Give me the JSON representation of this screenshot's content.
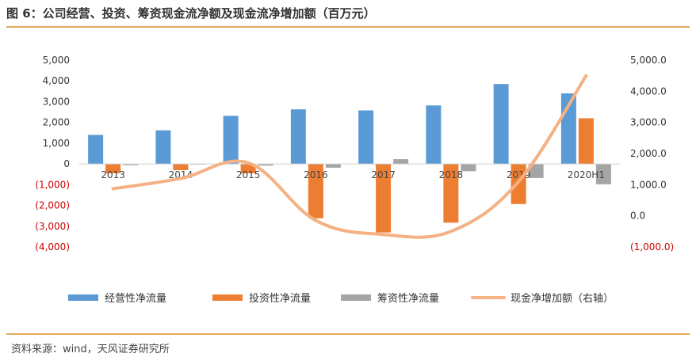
{
  "header": {
    "title": "图 6：公司经营、投资、筹资现金流净额及现金流净增加额（百万元）"
  },
  "footer": {
    "source": "资料来源：wind，天风证券研究所"
  },
  "chart_data": {
    "type": "bar",
    "categories": [
      "2013",
      "2014",
      "2015",
      "2016",
      "2017",
      "2018",
      "2019",
      "2020H1"
    ],
    "series": [
      {
        "name": "经营性净流量",
        "type": "bar",
        "axis": "left",
        "color": "#5b9bd5",
        "values": [
          1400,
          1620,
          2320,
          2630,
          2580,
          2820,
          3850,
          3400
        ]
      },
      {
        "name": "投资性净流量",
        "type": "bar",
        "axis": "left",
        "color": "#ed7d31",
        "values": [
          -450,
          -300,
          -450,
          -2620,
          -3300,
          -2830,
          -1930,
          2200
        ]
      },
      {
        "name": "筹资性净流量",
        "type": "bar",
        "axis": "left",
        "color": "#a5a5a5",
        "values": [
          -60,
          -30,
          -80,
          -180,
          230,
          -350,
          -680,
          -980
        ]
      },
      {
        "name": "现金净增加额（右轴）",
        "type": "line",
        "axis": "right",
        "color": "#f4b183",
        "values": [
          870,
          1200,
          1700,
          -150,
          -600,
          -500,
          1100,
          4500
        ]
      }
    ],
    "y_left": {
      "min": -4000,
      "max": 5000,
      "step": 1000,
      "tick_labels": [
        "(4,000)",
        "(3,000)",
        "(2,000)",
        "(1,000)",
        "0",
        "1,000",
        "2,000",
        "3,000",
        "4,000",
        "5,000"
      ]
    },
    "y_right": {
      "min": -1000,
      "max": 5000,
      "step": 1000,
      "tick_labels": [
        "(1,000.0)",
        "0.0",
        "1,000.0",
        "2,000.0",
        "3,000.0",
        "4,000.0",
        "5,000.0"
      ]
    },
    "grid": false,
    "legend_position": "bottom",
    "colors": {
      "negative_tick": "#cc0000",
      "positive_tick": "#333333",
      "rule": "#e3a85c"
    }
  }
}
